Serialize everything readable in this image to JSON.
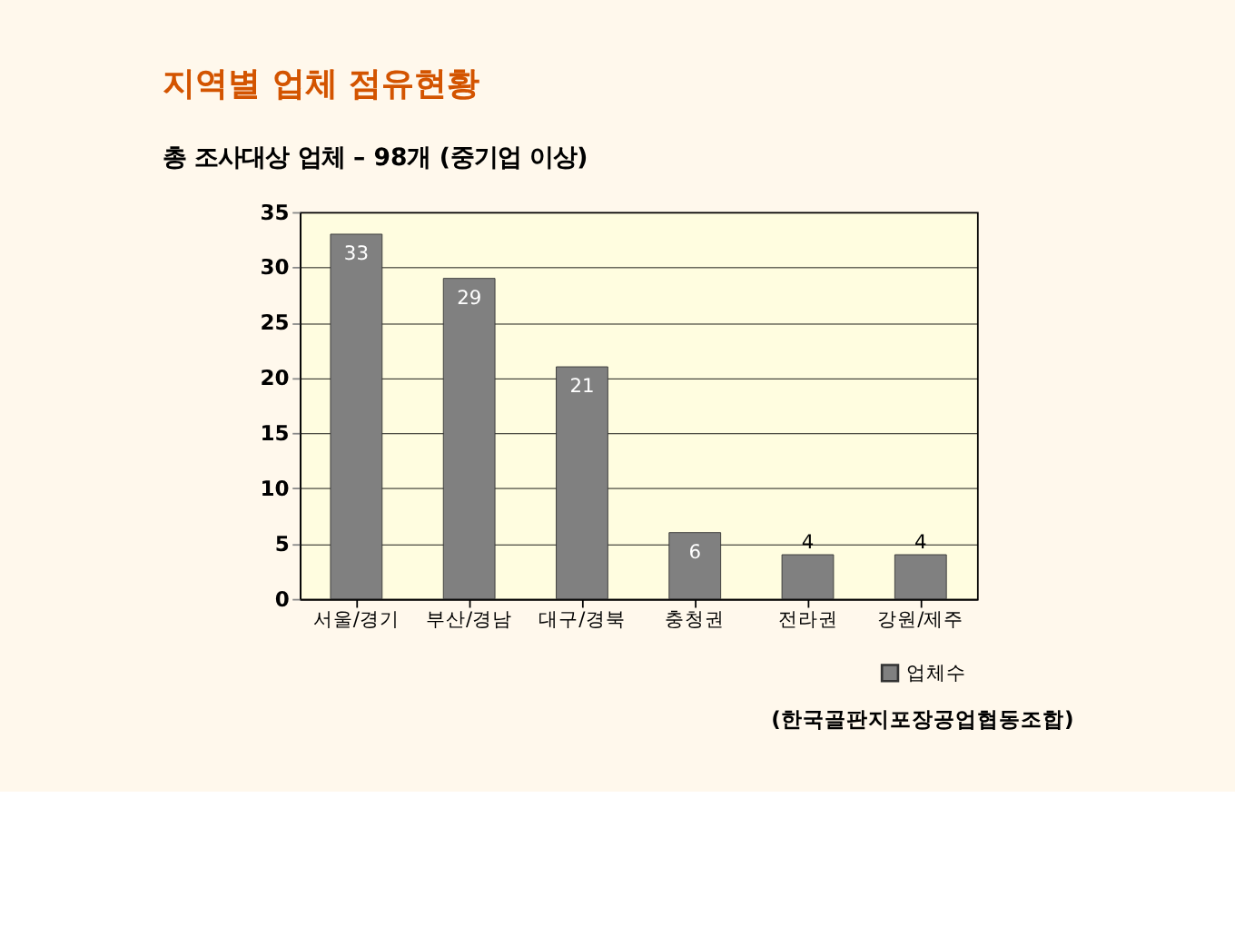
{
  "chart_data": {
    "type": "bar",
    "title": "지역별 업체 점유현황",
    "subtitle": "총 조사대상 업체 – 98개 (중기업 이상)",
    "categories": [
      "서울/경기",
      "부산/경남",
      "대구/경북",
      "충청권",
      "전라권",
      "강원/제주"
    ],
    "series": [
      {
        "name": "업체수",
        "color": "#808080",
        "values": [
          33,
          29,
          21,
          6,
          4,
          4
        ]
      }
    ],
    "ylim": [
      0,
      35
    ],
    "yticks": [
      0,
      5,
      10,
      15,
      20,
      25,
      30,
      35
    ],
    "grid": "y",
    "legend": "bottom right",
    "data_labels": true,
    "annotations": [
      "(한국골판지포장공업협동조합)"
    ]
  }
}
